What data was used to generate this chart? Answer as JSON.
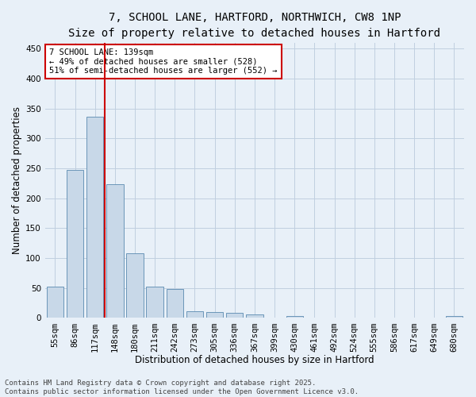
{
  "title_line1": "7, SCHOOL LANE, HARTFORD, NORTHWICH, CW8 1NP",
  "title_line2": "Size of property relative to detached houses in Hartford",
  "xlabel": "Distribution of detached houses by size in Hartford",
  "ylabel": "Number of detached properties",
  "categories": [
    "55sqm",
    "86sqm",
    "117sqm",
    "148sqm",
    "180sqm",
    "211sqm",
    "242sqm",
    "273sqm",
    "305sqm",
    "336sqm",
    "367sqm",
    "399sqm",
    "430sqm",
    "461sqm",
    "492sqm",
    "524sqm",
    "555sqm",
    "586sqm",
    "617sqm",
    "649sqm",
    "680sqm"
  ],
  "values": [
    53,
    247,
    337,
    224,
    108,
    53,
    49,
    11,
    10,
    8,
    6,
    0,
    3,
    0,
    0,
    0,
    0,
    0,
    0,
    0,
    3
  ],
  "bar_color": "#c8d8e8",
  "bar_edge_color": "#5a8ab0",
  "vline_color": "#cc0000",
  "annotation_text": "7 SCHOOL LANE: 139sqm\n← 49% of detached houses are smaller (528)\n51% of semi-detached houses are larger (552) →",
  "annotation_box_color": "#ffffff",
  "annotation_box_edge": "#cc0000",
  "ylim": [
    0,
    460
  ],
  "yticks": [
    0,
    50,
    100,
    150,
    200,
    250,
    300,
    350,
    400,
    450
  ],
  "grid_color": "#c0cfe0",
  "background_color": "#e8f0f8",
  "footer_line1": "Contains HM Land Registry data © Crown copyright and database right 2025.",
  "footer_line2": "Contains public sector information licensed under the Open Government Licence v3.0.",
  "title_fontsize": 10,
  "subtitle_fontsize": 9,
  "axis_label_fontsize": 8.5,
  "tick_fontsize": 7.5,
  "annotation_fontsize": 7.5,
  "footer_fontsize": 6.5
}
